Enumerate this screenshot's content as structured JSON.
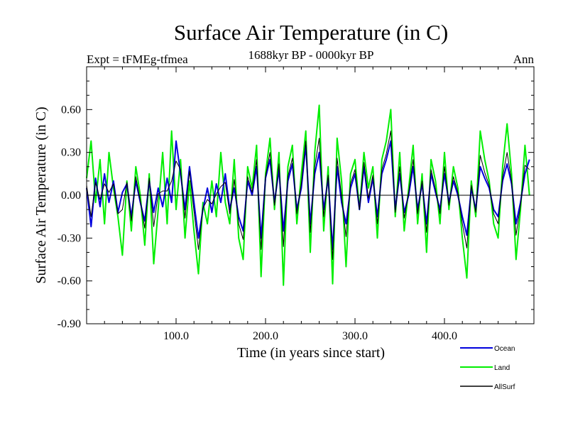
{
  "chart_data": {
    "type": "line",
    "title": "Surface Air Temperature (in C)",
    "subtitle": "1688kyr BP - 0000kyr BP",
    "left_annotation": "Expt = tFMEg-tfmea",
    "right_annotation": "Ann",
    "xlabel": "Time (in years since start)",
    "ylabel": "Surface Air Temperature (in C)",
    "xlim": [
      0,
      500
    ],
    "ylim": [
      -0.9,
      0.9
    ],
    "x_tick_labels": [
      "100.0",
      "200.0",
      "300.0",
      "400.0"
    ],
    "x_tick_values": [
      100,
      200,
      300,
      400
    ],
    "y_tick_labels": [
      "0.60",
      "0.30",
      "0.00",
      "-0.30",
      "-0.60",
      "-0.90"
    ],
    "y_tick_values": [
      0.6,
      0.3,
      0.0,
      -0.3,
      -0.6,
      -0.9
    ],
    "zero_line": true,
    "legend_position": "bottom-right",
    "series": [
      {
        "name": "Land",
        "color": "#00ee00",
        "x_start": 0,
        "x_step": 5,
        "values": [
          0.12,
          0.38,
          -0.05,
          0.25,
          -0.2,
          0.3,
          0.05,
          -0.15,
          -0.42,
          0.1,
          -0.25,
          0.2,
          0.0,
          -0.35,
          0.15,
          -0.48,
          -0.1,
          0.3,
          -0.2,
          0.45,
          -0.1,
          0.25,
          -0.3,
          0.1,
          -0.25,
          -0.55,
          -0.05,
          -0.2,
          0.1,
          -0.15,
          0.3,
          -0.05,
          -0.2,
          0.25,
          -0.3,
          -0.45,
          0.2,
          0.05,
          0.35,
          -0.57,
          0.15,
          0.4,
          -0.1,
          0.3,
          -0.63,
          0.2,
          0.35,
          -0.2,
          0.15,
          0.45,
          -0.4,
          0.3,
          0.63,
          -0.25,
          0.2,
          -0.62,
          0.4,
          0.1,
          -0.5,
          0.15,
          0.25,
          -0.1,
          0.3,
          0.05,
          0.2,
          -0.3,
          0.25,
          0.38,
          0.6,
          -0.15,
          0.3,
          -0.25,
          0.05,
          0.35,
          -0.2,
          0.15,
          -0.4,
          0.25,
          0.1,
          -0.2,
          0.3,
          -0.1,
          0.2,
          0.05,
          -0.3,
          -0.58,
          0.1,
          -0.15,
          0.45,
          0.25,
          0.1,
          -0.2,
          -0.3,
          0.2,
          0.5,
          0.15,
          -0.45,
          -0.1,
          0.35,
          0.0
        ]
      },
      {
        "name": "Ocean",
        "color": "#0000dd",
        "x_start": 0,
        "x_step": 5,
        "values": [
          0.05,
          -0.22,
          0.12,
          -0.08,
          0.15,
          -0.05,
          0.1,
          -0.12,
          0.02,
          0.08,
          -0.15,
          0.1,
          -0.05,
          -0.18,
          0.1,
          -0.12,
          0.05,
          -0.08,
          0.12,
          -0.05,
          0.38,
          0.15,
          -0.1,
          0.2,
          -0.05,
          -0.3,
          -0.1,
          0.05,
          -0.12,
          0.08,
          -0.05,
          0.15,
          -0.1,
          0.05,
          -0.15,
          -0.25,
          0.1,
          0.0,
          0.2,
          -0.3,
          0.12,
          0.25,
          -0.05,
          0.18,
          -0.25,
          0.1,
          0.22,
          -0.1,
          0.05,
          0.35,
          -0.2,
          0.15,
          0.3,
          -0.1,
          0.12,
          -0.38,
          0.2,
          -0.05,
          -0.2,
          0.05,
          0.15,
          -0.1,
          0.2,
          -0.05,
          0.12,
          -0.15,
          0.15,
          0.25,
          0.38,
          -0.1,
          0.15,
          -0.12,
          0.0,
          0.2,
          -0.1,
          0.08,
          -0.2,
          0.15,
          0.02,
          -0.1,
          0.15,
          -0.05,
          0.1,
          0.0,
          -0.15,
          -0.28,
          0.05,
          -0.1,
          0.2,
          0.12,
          0.05,
          -0.1,
          -0.15,
          0.1,
          0.22,
          0.08,
          -0.2,
          -0.05,
          0.15,
          0.25
        ]
      },
      {
        "name": "AllSurf",
        "color": "#000000",
        "x_start": 0,
        "x_step": 5,
        "values": [
          0.07,
          -0.15,
          0.09,
          -0.03,
          0.08,
          0.02,
          0.08,
          -0.13,
          -0.1,
          0.09,
          -0.18,
          0.13,
          -0.04,
          -0.23,
          0.12,
          -0.22,
          0.01,
          0.03,
          0.03,
          0.1,
          0.24,
          0.18,
          -0.16,
          0.17,
          -0.11,
          -0.38,
          -0.09,
          -0.03,
          -0.06,
          0.01,
          0.06,
          0.09,
          -0.13,
          0.11,
          -0.2,
          -0.31,
          0.13,
          0.02,
          0.25,
          -0.38,
          0.13,
          0.3,
          -0.07,
          0.22,
          -0.36,
          0.13,
          0.26,
          -0.13,
          0.08,
          0.38,
          -0.26,
          0.2,
          0.4,
          -0.15,
          0.14,
          -0.45,
          0.26,
          -0.01,
          -0.29,
          0.08,
          0.18,
          -0.1,
          0.23,
          -0.02,
          0.14,
          -0.2,
          0.18,
          0.29,
          0.45,
          -0.12,
          0.2,
          -0.16,
          0.02,
          0.25,
          -0.13,
          0.1,
          -0.26,
          0.18,
          0.04,
          -0.13,
          0.2,
          -0.07,
          0.13,
          0.02,
          -0.2,
          -0.37,
          0.07,
          -0.12,
          0.28,
          0.16,
          0.07,
          -0.13,
          -0.2,
          0.13,
          0.3,
          0.1,
          -0.28,
          -0.07,
          0.21,
          0.18
        ]
      }
    ]
  }
}
